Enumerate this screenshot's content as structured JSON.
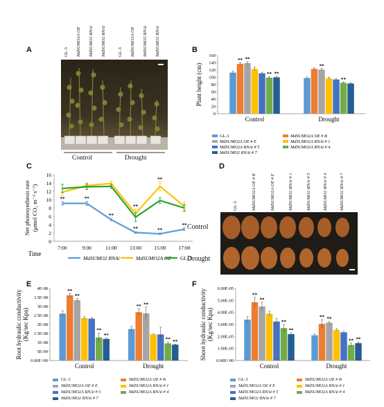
{
  "colors": {
    "gl3": "#5b9bd5",
    "oeB": "#ed7d31",
    "oeE": "#a5a5a5",
    "rnai1": "#ffc000",
    "rnai5": "#4472c4",
    "rnai4": "#70ad47",
    "rnai7": "#255e91"
  },
  "panelA": {
    "letter": "A",
    "genotypes": [
      "GL-3",
      "MdSUMO2A OE",
      "MdSUMO2 RNAi",
      "MdSUMO2 RNAi",
      "GL-3",
      "MdSUMO2A OE",
      "MdSUMO2 RNAi",
      "MdSUMO2 RNAi"
    ],
    "groups": [
      "Control",
      "Drought"
    ]
  },
  "panelD": {
    "letter": "D",
    "genotypes": [
      "GL-3",
      "MdSUMO2A OE # B",
      "MdSUMO2A OE # E",
      "MdSUMO2 RNAi # 1",
      "MdSUMO2 RNAi # 5",
      "MdSUMO2 RNAi # 4",
      "MdSUMO2 RNAi # 7"
    ],
    "rows": [
      "Control",
      "Drought"
    ]
  },
  "legend6": [
    "GL-3",
    "MdSUMO2A OE # B",
    "MdSUMO2A OE # E",
    "MdSUMO2A RNAi # 1",
    "MdSUMO2A RNAi # 5",
    "MdSUMO2A RNAi # 4",
    "MdSUMO2 RNAi # 7"
  ],
  "legendF": [
    "GL-3",
    "MdSUMO2A OE # B",
    "MdSUMO2A OE # E",
    "MdSUMO2A RNAi # 1",
    "MdSUMO2A RNAi # 5",
    "MdSUMO2A RNAi # 4",
    "MdSUMO2 RNAi # 7"
  ],
  "chart_data": [
    {
      "id": "B",
      "letter": "B",
      "type": "bar",
      "ylabel": "Plant height (cm)",
      "ylim": [
        0,
        160
      ],
      "yticks": [
        0,
        20,
        40,
        60,
        80,
        100,
        120,
        140,
        160
      ],
      "categories": [
        "Control",
        "Drought"
      ],
      "series": [
        {
          "name": "GL-3",
          "values": [
            113,
            98
          ],
          "sig": [
            "",
            ""
          ]
        },
        {
          "name": "MdSUMO2A OE # B",
          "values": [
            137,
            123
          ],
          "sig": [
            "**",
            ""
          ]
        },
        {
          "name": "MdSUMO2A OE # E",
          "values": [
            139,
            121
          ],
          "sig": [
            "**",
            "**"
          ]
        },
        {
          "name": "MdSUMO2A RNAi # 1",
          "values": [
            123,
            97
          ],
          "sig": [
            "",
            ""
          ]
        },
        {
          "name": "MdSUMO2A RNAi # 5",
          "values": [
            111,
            94
          ],
          "sig": [
            "",
            ""
          ]
        },
        {
          "name": "MdSUMO2A RNAi # 4",
          "values": [
            99,
            85
          ],
          "sig": [
            "**",
            "**"
          ]
        },
        {
          "name": "MdSUMO2 RNAi # 7",
          "values": [
            100,
            83
          ],
          "sig": [
            "**",
            ""
          ]
        }
      ],
      "errors": [
        [
          4,
          3
        ],
        [
          3,
          3
        ],
        [
          4,
          3
        ],
        [
          5,
          3
        ],
        [
          3,
          3
        ],
        [
          3,
          2
        ],
        [
          3,
          2
        ]
      ]
    },
    {
      "id": "C",
      "letter": "C",
      "type": "line",
      "ylabel": "Net photosynthesis rate",
      "ylabel2": "(μmol CO₂ m⁻² s⁻¹)",
      "xlabel": "Time",
      "ylim": [
        0,
        16
      ],
      "yticks": [
        0,
        2,
        4,
        6,
        8,
        10,
        12,
        14,
        16
      ],
      "x": [
        "7:00",
        "9:00",
        "11:00",
        "13:00",
        "15:00",
        "17:00"
      ],
      "series": [
        {
          "name": "MdSUMO2 RNAi",
          "values": [
            9.1,
            9.1,
            5.2,
            2.1,
            1.8,
            2.9
          ],
          "errors": [
            0.4,
            0.5,
            0.3,
            0.2,
            0.2,
            0.3
          ],
          "sig": [
            "**",
            "**",
            "**",
            "**",
            "**",
            "**"
          ]
        },
        {
          "name": "MdSUMO2A OE",
          "values": [
            11.8,
            13.4,
            13.9,
            6.7,
            13.2,
            8.4
          ],
          "errors": [
            0.8,
            0.6,
            0.5,
            1.0,
            1.0,
            1.0
          ],
          "sig": [
            "",
            "",
            "",
            "**",
            "**",
            ""
          ]
        },
        {
          "name": "GL-3",
          "values": [
            12.7,
            13.1,
            13.2,
            5.8,
            9.8,
            8.0
          ],
          "errors": [
            1.0,
            0.7,
            0.5,
            1.0,
            0.7,
            0.8
          ],
          "sig": [
            "",
            "",
            "",
            "",
            "",
            ""
          ]
        }
      ]
    },
    {
      "id": "E",
      "letter": "E",
      "type": "bar",
      "ylabel": "Root hydraulic conductivity",
      "ylabel2": "(Kg/sec Kpa)",
      "ylim": [
        0,
        4e-08
      ],
      "yticks": [
        "0.00E+00",
        "5E-09",
        "1E-08",
        "1.5E-08",
        "2E-08",
        "2.5E-08",
        "3E-08",
        "3.5E-08",
        "4E-08"
      ],
      "categories": [
        "Control",
        "Drought"
      ],
      "series": [
        {
          "name": "GL-3",
          "values": [
            2.6e-08,
            1.75e-08
          ],
          "sig": [
            "",
            ""
          ]
        },
        {
          "name": "MdSUMO2A OE # B",
          "values": [
            3.62e-08,
            2.68e-08
          ],
          "sig": [
            "**",
            "**"
          ]
        },
        {
          "name": "MdSUMO2A OE # E",
          "values": [
            3.35e-08,
            2.62e-08
          ],
          "sig": [
            "**",
            "**"
          ]
        },
        {
          "name": "MdSUMO2A RNAi # 1",
          "values": [
            2.35e-08,
            1.45e-08
          ],
          "sig": [
            "",
            ""
          ]
        },
        {
          "name": "MdSUMO2A RNAi # 5",
          "values": [
            2.32e-08,
            1.45e-08
          ],
          "sig": [
            "",
            ""
          ]
        },
        {
          "name": "MdSUMO2A RNAi # 4",
          "values": [
            1.28e-08,
            9.5e-09
          ],
          "sig": [
            "**",
            "**"
          ]
        },
        {
          "name": "MdSUMO2 RNAi # 7",
          "values": [
            1.2e-08,
            8.8e-09
          ],
          "sig": [
            "**",
            "**"
          ]
        }
      ],
      "errors": [
        [
          1.5e-09,
          1.5e-09
        ],
        [
          1e-09,
          1.8e-09
        ],
        [
          1e-09,
          3.5e-09
        ],
        [
          8e-10,
          2e-10
        ],
        [
          5e-10,
          4e-09
        ],
        [
          2.5e-09,
          8e-10
        ],
        [
          5e-10,
          3e-10
        ]
      ]
    },
    {
      "id": "F",
      "letter": "F",
      "type": "bar",
      "ylabel": "Shoot hydraulic conductivity",
      "ylabel2": "(Kg/sec Kpa)",
      "ylim": [
        0,
        6e-05
      ],
      "yticks": [
        "0.00E+00",
        "1.00E-05",
        "2.00E-05",
        "3.00E-05",
        "4.00E-05",
        "5.00E-05",
        "6.00E-05"
      ],
      "categories": [
        "Control",
        "Drought"
      ],
      "series": [
        {
          "name": "GL-3",
          "values": [
            3.4e-05,
            2.1e-05
          ],
          "sig": [
            "",
            ""
          ]
        },
        {
          "name": "MdSUMO2A OE # B",
          "values": [
            4.85e-05,
            3.05e-05
          ],
          "sig": [
            "**",
            "**"
          ]
        },
        {
          "name": "MdSUMO2A OE # E",
          "values": [
            4.5e-05,
            3.15e-05
          ],
          "sig": [
            "**",
            "**"
          ]
        },
        {
          "name": "MdSUMO2A RNAi # 1",
          "values": [
            3.9e-05,
            2.55e-05
          ],
          "sig": [
            "",
            ""
          ]
        },
        {
          "name": "MdSUMO2A RNAi # 5",
          "values": [
            3.25e-05,
            2.35e-05
          ],
          "sig": [
            "",
            ""
          ]
        },
        {
          "name": "MdSUMO2A RNAi # 4",
          "values": [
            2.7e-05,
            1.3e-05
          ],
          "sig": [
            "**",
            "**"
          ]
        },
        {
          "name": "MdSUMO2 RNAi # 7",
          "values": [
            2.2e-05,
            1.45e-05
          ],
          "sig": [
            "**",
            "**"
          ]
        }
      ],
      "errors": [
        [
          2.5e-06,
          1e-06
        ],
        [
          4e-06,
          3.5e-06
        ],
        [
          3.5e-06,
          1e-06
        ],
        [
          2e-06,
          1e-06
        ],
        [
          2.5e-06,
          1e-06
        ],
        [
          3e-06,
          1.5e-06
        ],
        [
          1e-06,
          1e-06
        ]
      ]
    }
  ]
}
